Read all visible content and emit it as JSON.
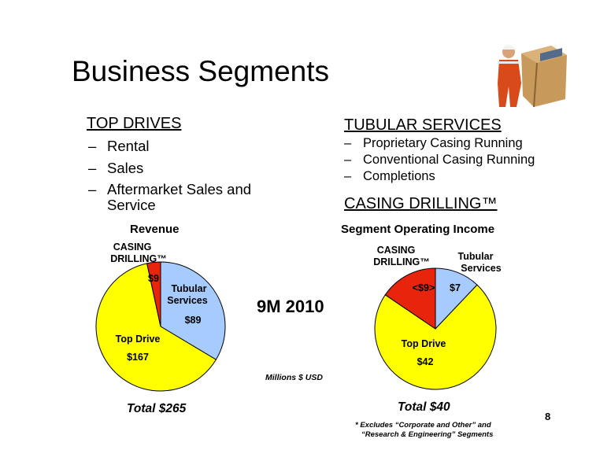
{
  "slide": {
    "title": "Business Segments",
    "page_number": "8"
  },
  "left_column": {
    "heading": "TOP DRIVES",
    "items": [
      "Rental",
      "Sales",
      "Aftermarket Sales and",
      "Service"
    ],
    "dash": "–"
  },
  "right_column": {
    "heading": "TUBULAR SERVICES",
    "items": [
      "Proprietary Casing Running",
      "Conventional Casing Running",
      "Completions"
    ],
    "heading2": "CASING DRILLING™"
  },
  "period_label": "9M 2010",
  "units_note": "Millions $ USD",
  "footnote": {
    "line1": "* Excludes “Corporate and Other” and",
    "line2": "“Research & Engineering” Segments"
  },
  "colors": {
    "top_drive": "#ffff00",
    "tubular_services": "#a6cbff",
    "casing_drilling": "#e8240c"
  },
  "chart_data": [
    {
      "type": "pie",
      "title": "Revenue",
      "total_label": "Total $265",
      "slices": [
        {
          "name": "Tubular Services",
          "value": 89,
          "label": "$89"
        },
        {
          "name": "Top Drive",
          "value": 167,
          "label": "$167"
        },
        {
          "name": "CASING DRILLING™",
          "value": 9,
          "label": "$9"
        }
      ]
    },
    {
      "type": "pie",
      "title": "Segment Operating Income",
      "total_label": "Total $40",
      "slices": [
        {
          "name": "Tubular Services",
          "value": 7,
          "label": "$7"
        },
        {
          "name": "Top Drive",
          "value": 42,
          "label": "$42"
        },
        {
          "name": "CASING DRILLING™",
          "value": -9,
          "label": "<$9>"
        }
      ]
    }
  ]
}
